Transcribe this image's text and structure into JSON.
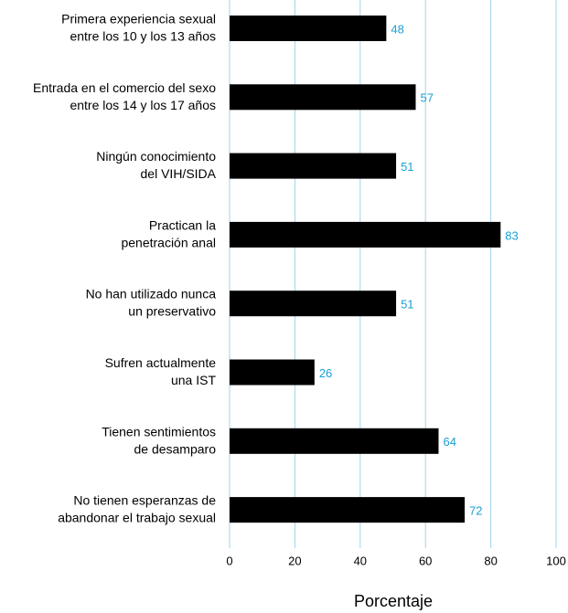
{
  "chart_data": {
    "type": "bar",
    "orientation": "horizontal",
    "categories": [
      [
        "Primera experiencia sexual",
        "entre los 10 y los 13 años"
      ],
      [
        "Entrada en el comercio del sexo",
        "entre los 14 y los 17 años"
      ],
      [
        "Ningún conocimiento",
        "del VIH/SIDA"
      ],
      [
        "Practican la",
        "penetración anal"
      ],
      [
        "No han utilizado nunca",
        "un preservativo"
      ],
      [
        "Sufren actualmente",
        "una IST"
      ],
      [
        "Tienen sentimientos",
        "de desamparo"
      ],
      [
        "No tienen esperanzas de",
        "abandonar el trabajo sexual"
      ]
    ],
    "values": [
      48,
      57,
      51,
      83,
      51,
      26,
      64,
      72
    ],
    "color": "#000000",
    "label_color": "#1a9fd6",
    "grid_color": "#9fd3ec",
    "xlabel": "Porcentaje",
    "xlim": [
      0,
      100
    ],
    "xticks": [
      0,
      20,
      40,
      60,
      80,
      100
    ],
    "grid": true
  }
}
